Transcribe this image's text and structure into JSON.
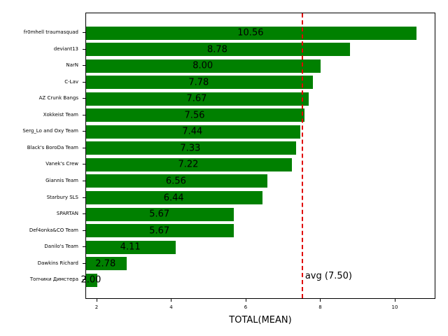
{
  "chart_data": {
    "type": "bar",
    "orientation": "horizontal",
    "title": "",
    "xlabel": "TOTAL(MEAN)",
    "ylabel": "",
    "xlim": [
      1.7,
      11.09
    ],
    "xticks": [
      2,
      4,
      6,
      8,
      10
    ],
    "grid": false,
    "bar_color": "#008000",
    "categories": [
      "fr0mhell traumasquad",
      "deviant13",
      "NarN",
      "C-Lav",
      "AZ Crunk Bangs",
      "Xokkeist Team",
      "Serg_Lo and Oxy Team",
      "Black's BoroDa Team",
      "Vanek's Crew",
      "Giannis Team",
      "Starbury SLS",
      "SPARTAN",
      "Def4onka&CO Team",
      "Danilo's Team",
      "Dawkins Richard",
      "Топчики Димстера"
    ],
    "values": [
      10.56,
      8.78,
      8.0,
      7.78,
      7.67,
      7.56,
      7.44,
      7.33,
      7.22,
      6.56,
      6.44,
      5.67,
      5.67,
      4.11,
      2.78,
      2.0
    ],
    "value_labels": [
      "10.56",
      "8.78",
      "8.00",
      "7.78",
      "7.67",
      "7.56",
      "7.44",
      "7.33",
      "7.22",
      "6.56",
      "6.44",
      "5.67",
      "5.67",
      "4.11",
      "2.78",
      "2.00"
    ],
    "reference_line": {
      "value": 7.5,
      "label": "avg (7.50)",
      "color": "#e00000",
      "style": "dashed"
    }
  }
}
